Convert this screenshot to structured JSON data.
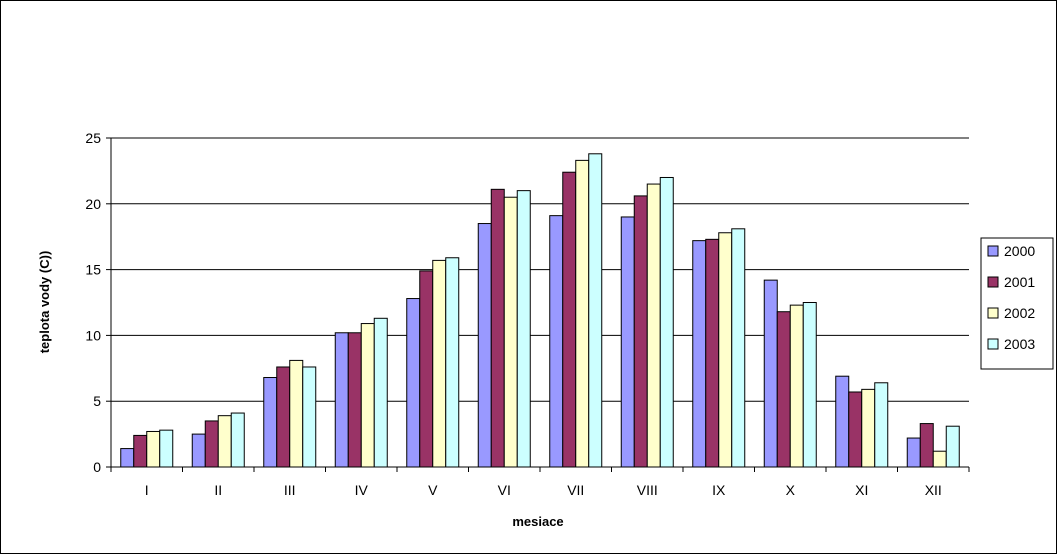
{
  "chart_data": {
    "type": "bar",
    "title": "",
    "xlabel": "mesiace",
    "ylabel": "teplota vody (C))",
    "ylim": [
      0,
      25
    ],
    "yticks": [
      0,
      5,
      10,
      15,
      20,
      25
    ],
    "grid": true,
    "legend_position": "right",
    "categories": [
      "I",
      "II",
      "III",
      "IV",
      "V",
      "VI",
      "VII",
      "VIII",
      "IX",
      "X",
      "XI",
      "XII"
    ],
    "series": [
      {
        "name": "2000",
        "color": "#9999ff",
        "values": [
          1.4,
          2.5,
          6.8,
          10.2,
          12.8,
          18.5,
          19.1,
          19.0,
          17.2,
          14.2,
          6.9,
          2.2
        ]
      },
      {
        "name": "2001",
        "color": "#993366",
        "values": [
          2.4,
          3.5,
          7.6,
          10.2,
          14.9,
          21.1,
          22.4,
          20.6,
          17.3,
          11.8,
          5.7,
          3.3
        ]
      },
      {
        "name": "2002",
        "color": "#ffffcc",
        "values": [
          2.7,
          3.9,
          8.1,
          10.9,
          15.7,
          20.5,
          23.3,
          21.5,
          17.8,
          12.3,
          5.9,
          1.2
        ]
      },
      {
        "name": "2003",
        "color": "#ccffff",
        "values": [
          2.8,
          4.1,
          7.6,
          11.3,
          15.9,
          21.0,
          23.8,
          22.0,
          18.1,
          12.5,
          6.4,
          3.1
        ]
      }
    ]
  }
}
